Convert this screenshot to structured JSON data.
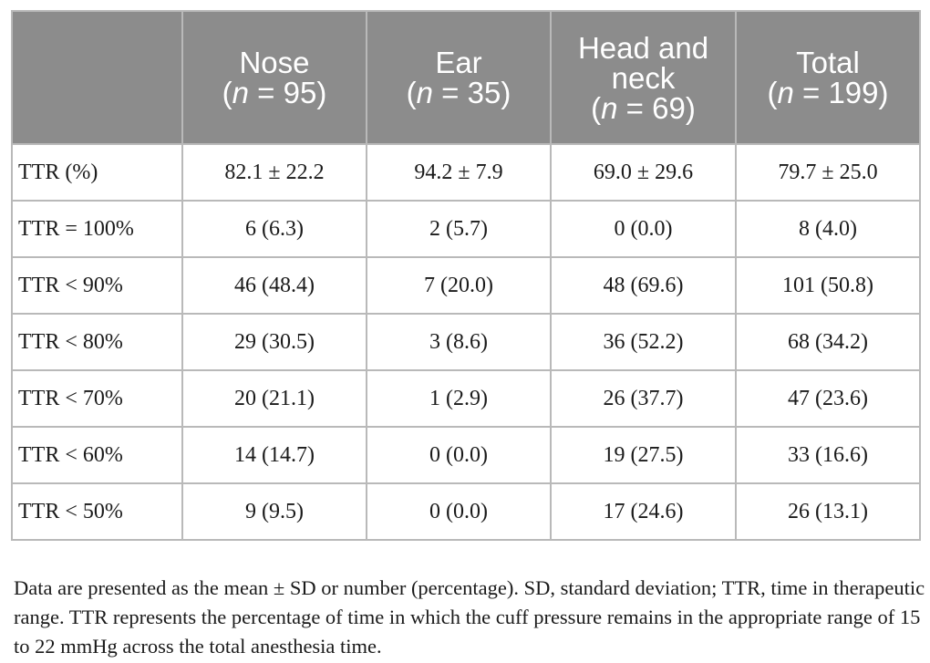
{
  "table": {
    "headers": [
      {
        "line1": "",
        "line2": "",
        "n": ""
      },
      {
        "line1": "Nose",
        "line2": "",
        "n": "95"
      },
      {
        "line1": "Ear",
        "line2": "",
        "n": "35"
      },
      {
        "line1": "Head and",
        "line2": "neck",
        "n": "69"
      },
      {
        "line1": "Total",
        "line2": "",
        "n": "199"
      }
    ],
    "n_symbol": "n",
    "n_equals": " = ",
    "rows": [
      [
        "TTR (%)",
        "82.1 ± 22.2",
        "94.2 ± 7.9",
        "69.0 ± 29.6",
        "79.7 ± 25.0"
      ],
      [
        "TTR = 100%",
        "6 (6.3)",
        "2 (5.7)",
        "0 (0.0)",
        "8 (4.0)"
      ],
      [
        "TTR < 90%",
        "46 (48.4)",
        "7 (20.0)",
        "48 (69.6)",
        "101 (50.8)"
      ],
      [
        "TTR < 80%",
        "29 (30.5)",
        "3 (8.6)",
        "36 (52.2)",
        "68 (34.2)"
      ],
      [
        "TTR < 70%",
        "20 (21.1)",
        "1 (2.9)",
        "26 (37.7)",
        "47 (23.6)"
      ],
      [
        "TTR < 60%",
        "14 (14.7)",
        "0 (0.0)",
        "19 (27.5)",
        "33 (16.6)"
      ],
      [
        "TTR < 50%",
        "9 (9.5)",
        "0 (0.0)",
        "17 (24.6)",
        "26 (13.1)"
      ]
    ]
  },
  "footnote": "Data are presented as the mean ± SD or number (percentage). SD, standard deviation; TTR, time in therapeutic range. TTR represents the percentage of time in which the cuff pressure remains in the appropriate range of 15 to 22 mmHg across the total anesthesia time.",
  "colors": {
    "header_bg": "#8c8c8c",
    "header_text": "#ffffff",
    "border": "#b9b9b9",
    "body_text": "#1a1a1a"
  }
}
